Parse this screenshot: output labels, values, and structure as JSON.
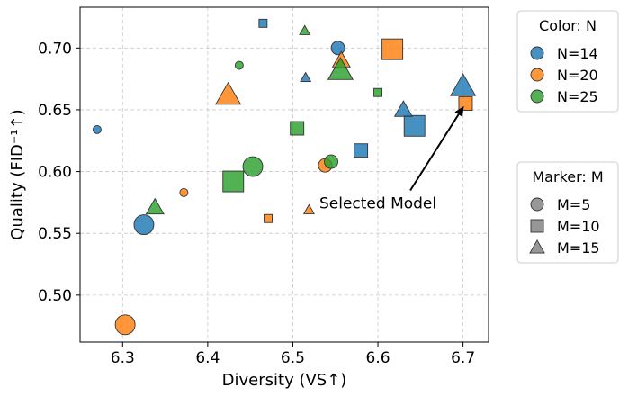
{
  "chart_data": {
    "type": "scatter",
    "xlabel": "Diversity (VS↑)",
    "ylabel": "Quality (FID⁻¹↑)",
    "xlim": [
      6.25,
      6.73
    ],
    "ylim": [
      0.462,
      0.733
    ],
    "xticks": [
      "6.3",
      "6.4",
      "6.5",
      "6.6",
      "6.7"
    ],
    "yticks": [
      "0.50",
      "0.55",
      "0.60",
      "0.65",
      "0.70"
    ],
    "grid": true,
    "colors": {
      "N=14": "#1f77b4",
      "N=20": "#ff7f0e",
      "N=25": "#2ca02c"
    },
    "legends": [
      {
        "title": "Color: N",
        "placement": "top-right-outside",
        "entries": [
          {
            "label": "N=14",
            "shape": "circle",
            "color": "#1f77b4"
          },
          {
            "label": "N=20",
            "shape": "circle",
            "color": "#ff7f0e"
          },
          {
            "label": "N=25",
            "shape": "circle",
            "color": "#2ca02c"
          }
        ]
      },
      {
        "title": "Marker: M",
        "placement": "right-outside",
        "entries": [
          {
            "label": "M=5",
            "shape": "circle",
            "color": "#808080"
          },
          {
            "label": "M=10",
            "shape": "square",
            "color": "#808080"
          },
          {
            "label": "M=15",
            "shape": "triangle",
            "color": "#808080"
          }
        ]
      }
    ],
    "annotation": {
      "text": "Selected Model",
      "text_at": [
        6.6,
        0.576
      ],
      "arrow_to": [
        6.701,
        0.653
      ]
    },
    "points": [
      {
        "x": 6.27,
        "y": 0.634,
        "N": 14,
        "M": 5,
        "size": "small"
      },
      {
        "x": 6.325,
        "y": 0.557,
        "N": 14,
        "M": 5,
        "size": "large"
      },
      {
        "x": 6.553,
        "y": 0.7,
        "N": 14,
        "M": 5,
        "size": "medium"
      },
      {
        "x": 6.465,
        "y": 0.72,
        "N": 14,
        "M": 10,
        "size": "small"
      },
      {
        "x": 6.58,
        "y": 0.617,
        "N": 14,
        "M": 10,
        "size": "medium"
      },
      {
        "x": 6.643,
        "y": 0.637,
        "N": 14,
        "M": 10,
        "size": "large"
      },
      {
        "x": 6.515,
        "y": 0.676,
        "N": 14,
        "M": 15,
        "size": "small"
      },
      {
        "x": 6.63,
        "y": 0.65,
        "N": 14,
        "M": 15,
        "size": "medium"
      },
      {
        "x": 6.7,
        "y": 0.669,
        "N": 14,
        "M": 15,
        "size": "large"
      },
      {
        "x": 6.372,
        "y": 0.583,
        "N": 20,
        "M": 5,
        "size": "small"
      },
      {
        "x": 6.538,
        "y": 0.605,
        "N": 20,
        "M": 5,
        "size": "medium"
      },
      {
        "x": 6.303,
        "y": 0.476,
        "N": 20,
        "M": 5,
        "size": "large"
      },
      {
        "x": 6.471,
        "y": 0.562,
        "N": 20,
        "M": 10,
        "size": "small"
      },
      {
        "x": 6.703,
        "y": 0.655,
        "N": 20,
        "M": 10,
        "size": "medium"
      },
      {
        "x": 6.617,
        "y": 0.699,
        "N": 20,
        "M": 10,
        "size": "large"
      },
      {
        "x": 6.519,
        "y": 0.569,
        "N": 20,
        "M": 15,
        "size": "small"
      },
      {
        "x": 6.557,
        "y": 0.69,
        "N": 20,
        "M": 15,
        "size": "medium"
      },
      {
        "x": 6.424,
        "y": 0.662,
        "N": 20,
        "M": 15,
        "size": "large"
      },
      {
        "x": 6.437,
        "y": 0.686,
        "N": 25,
        "M": 5,
        "size": "small"
      },
      {
        "x": 6.545,
        "y": 0.608,
        "N": 25,
        "M": 5,
        "size": "medium"
      },
      {
        "x": 6.453,
        "y": 0.604,
        "N": 25,
        "M": 5,
        "size": "large"
      },
      {
        "x": 6.6,
        "y": 0.664,
        "N": 25,
        "M": 10,
        "size": "small"
      },
      {
        "x": 6.505,
        "y": 0.635,
        "N": 25,
        "M": 10,
        "size": "medium"
      },
      {
        "x": 6.43,
        "y": 0.592,
        "N": 25,
        "M": 10,
        "size": "large"
      },
      {
        "x": 6.514,
        "y": 0.714,
        "N": 25,
        "M": 15,
        "size": "small"
      },
      {
        "x": 6.338,
        "y": 0.571,
        "N": 25,
        "M": 15,
        "size": "medium"
      },
      {
        "x": 6.556,
        "y": 0.682,
        "N": 25,
        "M": 15,
        "size": "large"
      }
    ]
  }
}
